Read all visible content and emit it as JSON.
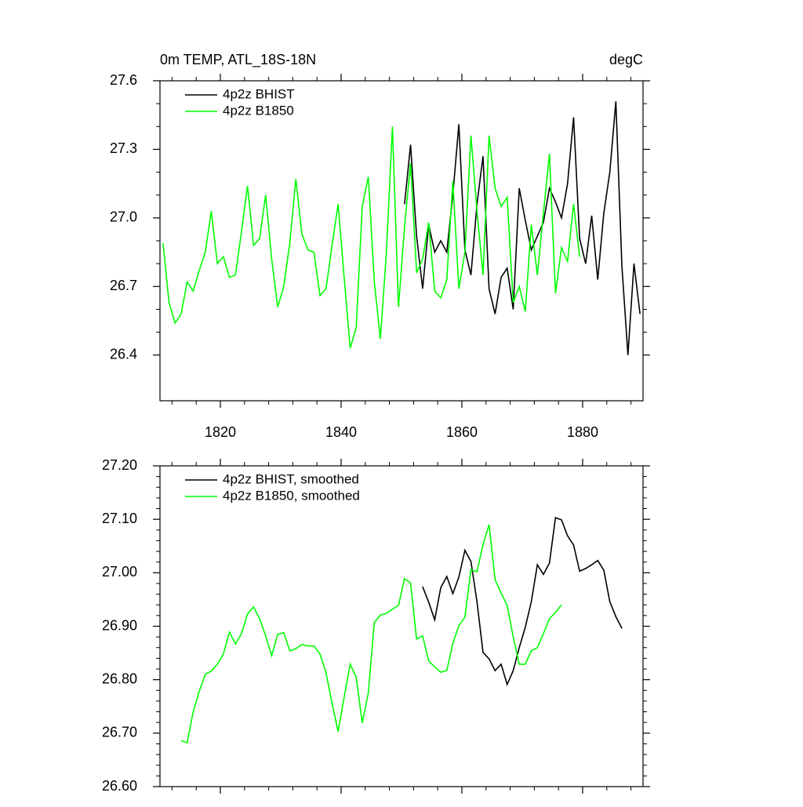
{
  "chart_data": [
    {
      "type": "line",
      "title": "0m TEMP, ATL_18S-18N",
      "right_title": "degC",
      "xlim": [
        1810,
        1890
      ],
      "xticks": [
        1820,
        1840,
        1860,
        1880
      ],
      "ylim": [
        26.2,
        27.6
      ],
      "yticks": [
        27.6,
        27.3,
        {
          "value": 27,
          "label": "27.0"
        },
        26.7,
        26.4
      ],
      "series": [
        {
          "name": "4p2z BHIST",
          "color": "#000000",
          "x": [
            1850.5,
            1851.5,
            1852.5,
            1853.5,
            1854.5,
            1855.5,
            1856.5,
            1857.5,
            1858.5,
            1859.5,
            1860.5,
            1861.5,
            1862.5,
            1863.5,
            1864.5,
            1865.5,
            1866.5,
            1867.5,
            1868.5,
            1869.5,
            1870.5,
            1871.5,
            1872.5,
            1873.5,
            1874.5,
            1875.5,
            1876.5,
            1877.5,
            1878.5,
            1879.5,
            1880.5,
            1881.5,
            1882.5,
            1883.5,
            1884.5,
            1885.5,
            1886.5,
            1887.5,
            1888.5,
            1889.5
          ],
          "values": [
            27.06,
            27.32,
            26.92,
            26.69,
            26.97,
            26.85,
            26.9,
            26.85,
            27.1,
            27.41,
            26.86,
            26.75,
            27.06,
            27.27,
            26.69,
            26.58,
            26.74,
            26.78,
            26.6,
            27.13,
            26.99,
            26.86,
            26.92,
            26.98,
            27.13,
            27.07,
            27.0,
            27.15,
            27.44,
            26.91,
            26.8,
            27.01,
            26.73,
            27.02,
            27.2,
            27.51,
            26.79,
            26.4,
            26.8,
            26.58
          ]
        },
        {
          "name": "4p2z B1850",
          "color": "#00ff00",
          "x": [
            1810.5,
            1811.5,
            1812.5,
            1813.5,
            1814.5,
            1815.5,
            1816.5,
            1817.5,
            1818.5,
            1819.5,
            1820.5,
            1821.5,
            1822.5,
            1823.5,
            1824.5,
            1825.5,
            1826.5,
            1827.5,
            1828.5,
            1829.5,
            1830.5,
            1831.5,
            1832.5,
            1833.5,
            1834.5,
            1835.5,
            1836.5,
            1837.5,
            1838.5,
            1839.5,
            1840.5,
            1841.5,
            1842.5,
            1843.5,
            1844.5,
            1845.5,
            1846.5,
            1847.5,
            1848.5,
            1849.5,
            1850.5,
            1851.5,
            1852.5,
            1853.5,
            1854.5,
            1855.5,
            1856.5,
            1857.5,
            1858.5,
            1859.5,
            1860.5,
            1861.5,
            1862.5,
            1863.5,
            1864.5,
            1865.5,
            1866.5,
            1867.5,
            1868.5,
            1869.5,
            1870.5,
            1871.5,
            1872.5,
            1873.5,
            1874.5,
            1875.5,
            1876.5,
            1877.5,
            1878.5,
            1879.5
          ],
          "values": [
            26.89,
            26.63,
            26.54,
            26.58,
            26.72,
            26.68,
            26.77,
            26.85,
            27.03,
            26.8,
            26.83,
            26.74,
            26.75,
            26.94,
            27.14,
            26.88,
            26.91,
            27.1,
            26.82,
            26.61,
            26.7,
            26.89,
            27.17,
            26.93,
            26.86,
            26.85,
            26.66,
            26.69,
            26.88,
            27.06,
            26.74,
            26.43,
            26.52,
            27.05,
            27.18,
            26.72,
            26.47,
            26.85,
            27.4,
            26.61,
            26.96,
            27.24,
            26.76,
            26.82,
            26.98,
            26.68,
            26.65,
            26.73,
            27.16,
            26.69,
            26.85,
            27.36,
            27.03,
            26.75,
            27.36,
            27.13,
            27.05,
            27.09,
            26.63,
            26.7,
            26.59,
            26.97,
            26.75,
            27.02,
            27.28,
            26.67,
            26.87,
            26.81,
            27.06,
            26.83
          ]
        }
      ]
    },
    {
      "type": "line",
      "xlim": [
        1810,
        1890
      ],
      "xticks": [
        1820,
        1840,
        1860,
        1880
      ],
      "ylim": [
        26.6,
        27.2
      ],
      "yticks": [
        {
          "value": 27.2,
          "label": "27.20"
        },
        {
          "value": 27.1,
          "label": "27.10"
        },
        {
          "value": 27,
          "label": "27.00"
        },
        {
          "value": 26.9,
          "label": "26.90"
        },
        {
          "value": 26.8,
          "label": "26.80"
        },
        {
          "value": 26.7,
          "label": "26.70"
        },
        {
          "value": 26.6,
          "label": "26.60"
        }
      ],
      "series": [
        {
          "name": "4p2z BHIST, smoothed",
          "color": "#000000",
          "x": [
            1853.5,
            1854.5,
            1855.5,
            1856.5,
            1857.5,
            1858.5,
            1859.5,
            1860.5,
            1861.5,
            1862.5,
            1863.5,
            1864.5,
            1865.5,
            1866.5,
            1867.5,
            1868.5,
            1869.5,
            1870.5,
            1871.5,
            1872.5,
            1873.5,
            1874.5,
            1875.5,
            1876.5,
            1877.5,
            1878.5,
            1879.5,
            1880.5,
            1881.5,
            1882.5,
            1883.5,
            1884.5,
            1885.5,
            1886.5
          ],
          "values": [
            26.974,
            26.945,
            26.912,
            26.972,
            26.993,
            26.961,
            26.992,
            27.042,
            27.021,
            26.946,
            26.851,
            26.839,
            26.817,
            26.829,
            26.791,
            26.817,
            26.86,
            26.898,
            26.946,
            27.015,
            26.997,
            27.018,
            27.103,
            27.099,
            27.069,
            27.052,
            27.003,
            27.008,
            27.015,
            27.023,
            27.005,
            26.946,
            26.918,
            26.896
          ]
        },
        {
          "name": "4p2z B1850, smoothed",
          "color": "#00ff00",
          "x": [
            1813.5,
            1814.5,
            1815.5,
            1816.5,
            1817.5,
            1818.5,
            1819.5,
            1820.5,
            1821.5,
            1822.5,
            1823.5,
            1824.5,
            1825.5,
            1826.5,
            1827.5,
            1828.5,
            1829.5,
            1830.5,
            1831.5,
            1832.5,
            1833.5,
            1834.5,
            1835.5,
            1836.5,
            1837.5,
            1838.5,
            1839.5,
            1840.5,
            1841.5,
            1842.5,
            1843.5,
            1844.5,
            1845.5,
            1846.5,
            1847.5,
            1848.5,
            1849.5,
            1850.5,
            1851.5,
            1852.5,
            1853.5,
            1854.5,
            1855.5,
            1856.5,
            1857.5,
            1858.5,
            1859.5,
            1860.5,
            1861.5,
            1862.5,
            1863.5,
            1864.5,
            1865.5,
            1866.5,
            1867.5,
            1868.5,
            1869.5,
            1870.5,
            1871.5,
            1872.5,
            1873.5,
            1874.5,
            1875.5,
            1876.5
          ],
          "values": [
            26.686,
            26.682,
            26.74,
            26.778,
            26.81,
            26.816,
            26.829,
            26.848,
            26.889,
            26.867,
            26.886,
            26.923,
            26.936,
            26.914,
            26.882,
            26.845,
            26.885,
            26.888,
            26.854,
            26.858,
            26.866,
            26.863,
            26.863,
            26.848,
            26.813,
            26.756,
            26.703,
            26.767,
            26.829,
            26.805,
            26.719,
            26.775,
            26.907,
            26.921,
            26.924,
            26.932,
            26.939,
            26.989,
            26.981,
            26.876,
            26.882,
            26.835,
            26.824,
            26.814,
            26.817,
            26.868,
            26.901,
            26.917,
            27.006,
            27.002,
            27.053,
            27.09,
            26.987,
            26.962,
            26.939,
            26.88,
            26.829,
            26.829,
            26.854,
            26.86,
            26.886,
            26.914,
            26.926,
            26.94
          ]
        }
      ]
    }
  ]
}
